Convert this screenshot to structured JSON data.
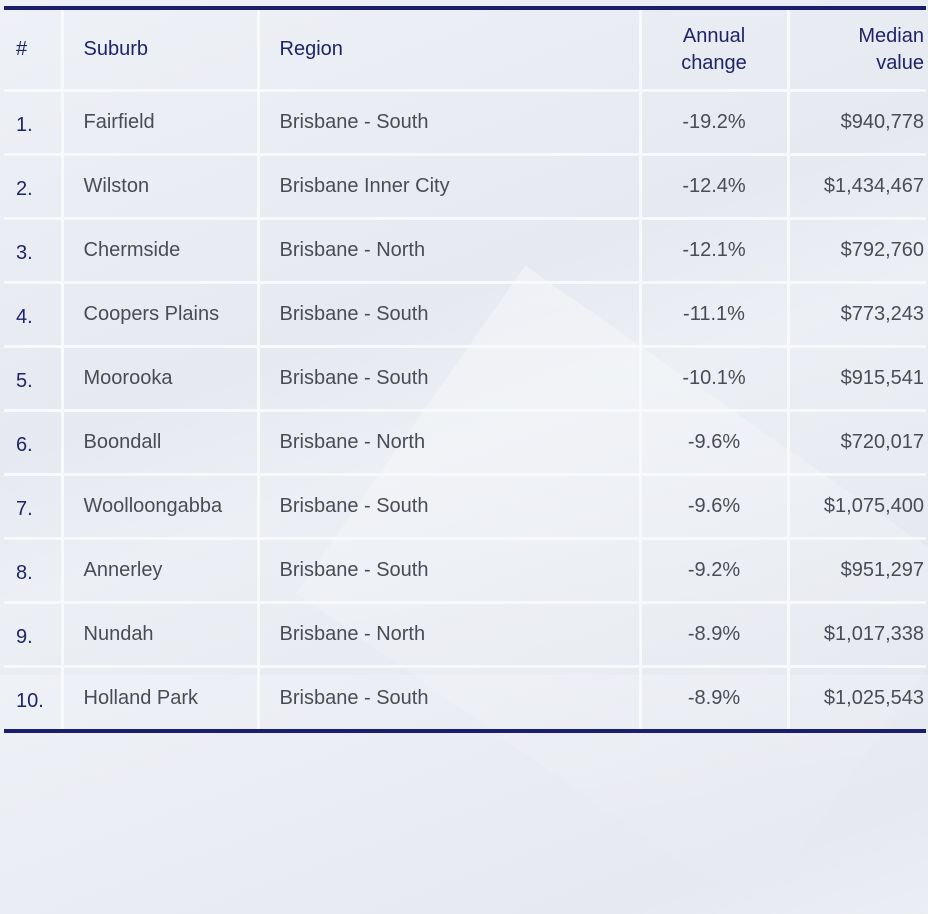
{
  "table": {
    "headers": [
      "#",
      "Suburb",
      "Region",
      "Annual\nchange",
      "Median\nvalue"
    ],
    "header_lines": {
      "rank": "#",
      "suburb": "Suburb",
      "region": "Region",
      "annual_change_1": "Annual",
      "annual_change_2": "change",
      "median_value_1": "Median",
      "median_value_2": "value"
    },
    "rows": [
      {
        "rank": "1.",
        "suburb": "Fairfield",
        "region": "Brisbane - South",
        "annual_change": "-19.2%",
        "median_value": "$940,778"
      },
      {
        "rank": "2.",
        "suburb": "Wilston",
        "region": "Brisbane Inner City",
        "annual_change": "-12.4%",
        "median_value": "$1,434,467"
      },
      {
        "rank": "3.",
        "suburb": "Chermside",
        "region": "Brisbane - North",
        "annual_change": "-12.1%",
        "median_value": "$792,760"
      },
      {
        "rank": "4.",
        "suburb": "Coopers Plains",
        "region": "Brisbane - South",
        "annual_change": "-11.1%",
        "median_value": "$773,243"
      },
      {
        "rank": "5.",
        "suburb": "Moorooka",
        "region": "Brisbane - South",
        "annual_change": "-10.1%",
        "median_value": "$915,541"
      },
      {
        "rank": "6.",
        "suburb": "Boondall",
        "region": "Brisbane - North",
        "annual_change": "-9.6%",
        "median_value": "$720,017"
      },
      {
        "rank": "7.",
        "suburb": "Woolloongabba",
        "region": "Brisbane - South",
        "annual_change": "-9.6%",
        "median_value": "$1,075,400"
      },
      {
        "rank": "8.",
        "suburb": "Annerley",
        "region": "Brisbane - South",
        "annual_change": "-9.2%",
        "median_value": "$951,297"
      },
      {
        "rank": "9.",
        "suburb": "Nundah",
        "region": "Brisbane - North",
        "annual_change": "-8.9%",
        "median_value": "$1,017,338"
      },
      {
        "rank": "10.",
        "suburb": "Holland Park",
        "region": "Brisbane - South",
        "annual_change": "-8.9%",
        "median_value": "$1,025,543"
      }
    ]
  },
  "colors": {
    "border_accent": "#1b1f6b",
    "header_text": "#1f2468",
    "body_text": "#4a4c55",
    "grid_line": "#f8f9fb"
  }
}
